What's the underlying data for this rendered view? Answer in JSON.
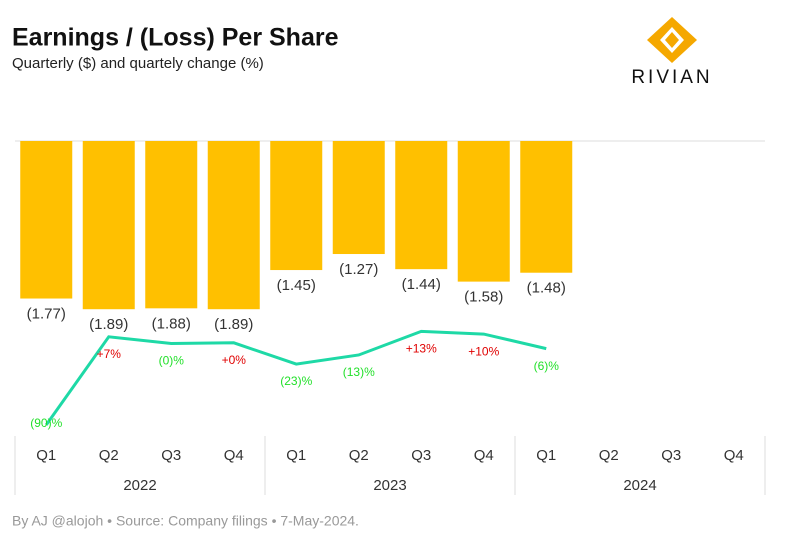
{
  "chart_data": {
    "type": "bar",
    "title": "Earnings / (Loss) Per Share",
    "subtitle": "Quarterly ($) and quartely change (%)",
    "brand": "RIVIAN",
    "source": "By AJ @alojoh • Source: Company filings • 7-May-2024.",
    "categories": [
      "Q1",
      "Q2",
      "Q3",
      "Q4",
      "Q1",
      "Q2",
      "Q3",
      "Q4",
      "Q1",
      "Q2",
      "Q3",
      "Q4"
    ],
    "groups": [
      "2022",
      "2023",
      "2024"
    ],
    "ylim": [
      -2,
      0
    ],
    "y2lim": [
      -100,
      20
    ],
    "series": [
      {
        "name": "EPS",
        "type": "bar",
        "color": "#FFC000",
        "values": [
          -1.77,
          -1.89,
          -1.88,
          -1.89,
          -1.45,
          -1.27,
          -1.44,
          -1.58,
          -1.48,
          null,
          null,
          null
        ],
        "value_labels": [
          "(1.77)",
          "(1.89)",
          "(1.88)",
          "(1.89)",
          "(1.45)",
          "(1.27)",
          "(1.44)",
          "(1.58)",
          "(1.48)",
          null,
          null,
          null
        ]
      },
      {
        "name": "Quarterly change",
        "type": "line",
        "axis": "y2",
        "color": "#1ED9A6",
        "positive_color": "#E00000",
        "negative_color": "#22E02A",
        "values": [
          -90,
          7,
          -0.4,
          0.4,
          -23,
          -13,
          13,
          10,
          -6,
          null,
          null,
          null
        ],
        "value_labels": [
          "(90)%",
          "+7%",
          "(0)%",
          "+0%",
          "(23)%",
          "(13)%",
          "+13%",
          "+10%",
          "(6)%",
          null,
          null,
          null
        ]
      }
    ]
  }
}
